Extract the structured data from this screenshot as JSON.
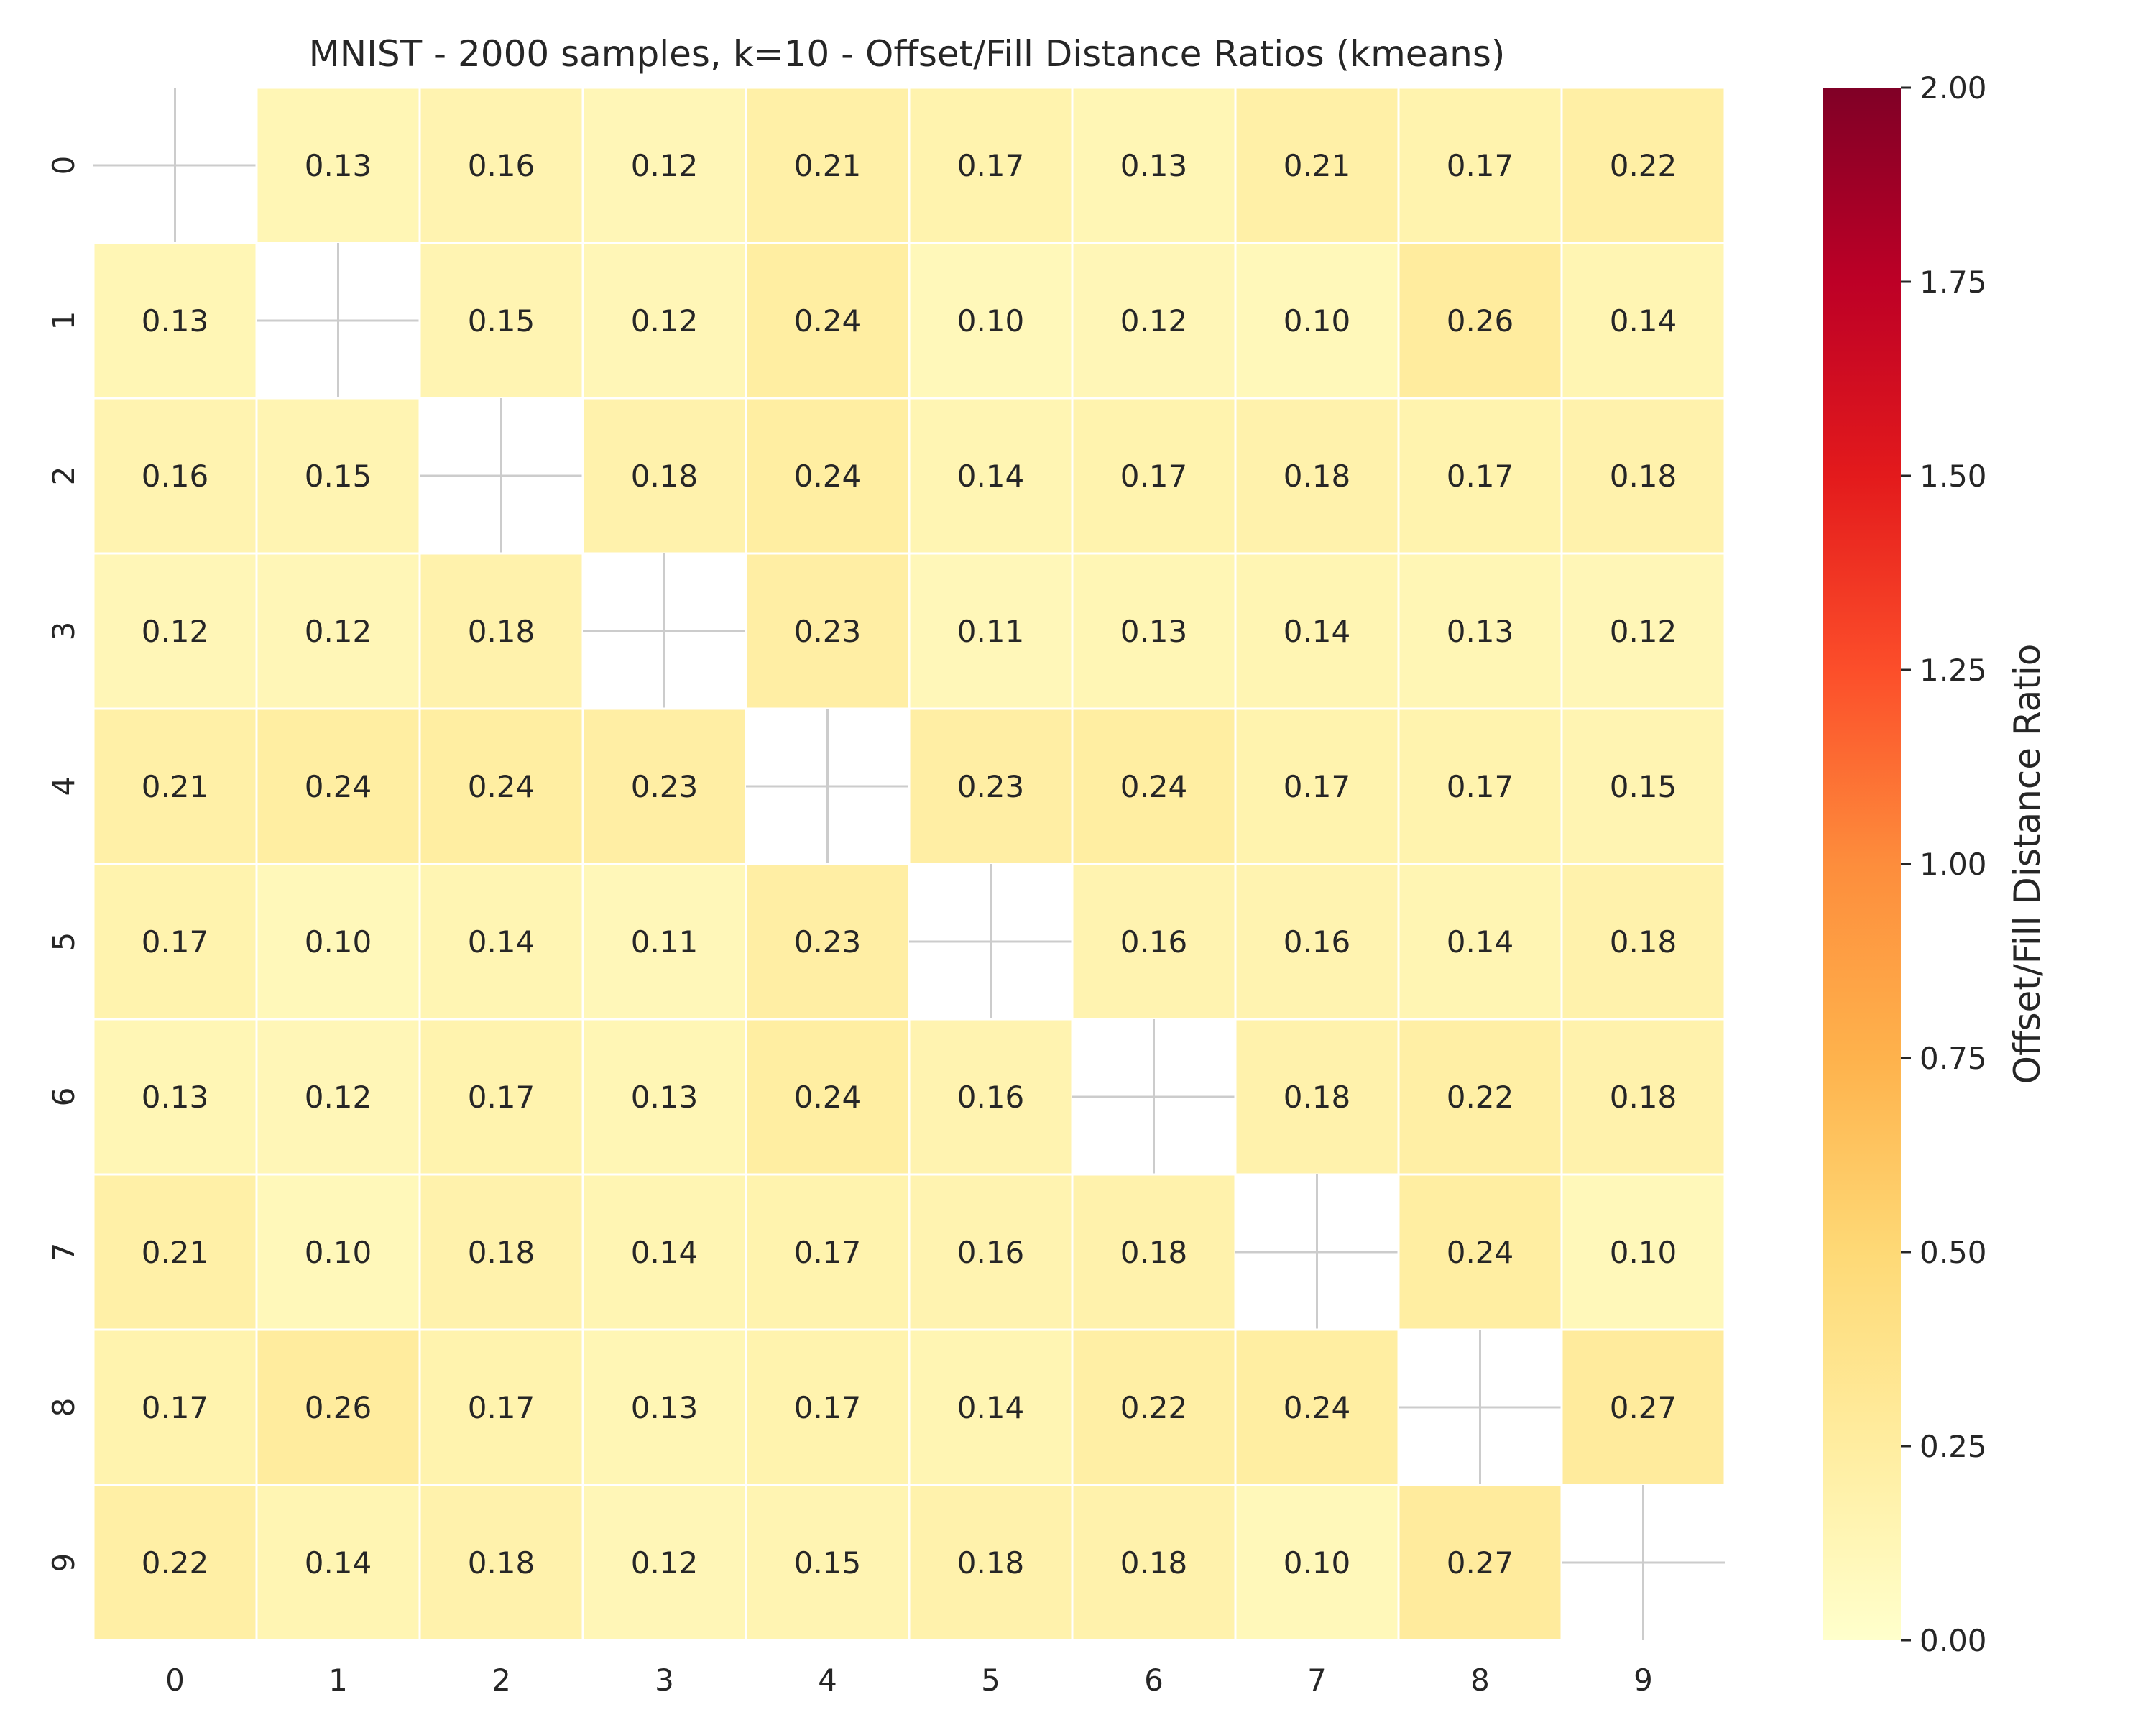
{
  "chart_data": {
    "type": "heatmap",
    "title": "MNIST - 2000 samples, k=10 - Offset/Fill Distance Ratios (kmeans)",
    "x_categories": [
      "0",
      "1",
      "2",
      "3",
      "4",
      "5",
      "6",
      "7",
      "8",
      "9"
    ],
    "y_categories": [
      "0",
      "1",
      "2",
      "3",
      "4",
      "5",
      "6",
      "7",
      "8",
      "9"
    ],
    "values": [
      [
        null,
        0.13,
        0.16,
        0.12,
        0.21,
        0.17,
        0.13,
        0.21,
        0.17,
        0.22
      ],
      [
        0.13,
        null,
        0.15,
        0.12,
        0.24,
        0.1,
        0.12,
        0.1,
        0.26,
        0.14
      ],
      [
        0.16,
        0.15,
        null,
        0.18,
        0.24,
        0.14,
        0.17,
        0.18,
        0.17,
        0.18
      ],
      [
        0.12,
        0.12,
        0.18,
        null,
        0.23,
        0.11,
        0.13,
        0.14,
        0.13,
        0.12
      ],
      [
        0.21,
        0.24,
        0.24,
        0.23,
        null,
        0.23,
        0.24,
        0.17,
        0.17,
        0.15
      ],
      [
        0.17,
        0.1,
        0.14,
        0.11,
        0.23,
        null,
        0.16,
        0.16,
        0.14,
        0.18
      ],
      [
        0.13,
        0.12,
        0.17,
        0.13,
        0.24,
        0.16,
        null,
        0.18,
        0.22,
        0.18
      ],
      [
        0.21,
        0.1,
        0.18,
        0.14,
        0.17,
        0.16,
        0.18,
        null,
        0.24,
        0.1
      ],
      [
        0.17,
        0.26,
        0.17,
        0.13,
        0.17,
        0.14,
        0.22,
        0.24,
        null,
        0.27
      ],
      [
        0.22,
        0.14,
        0.18,
        0.12,
        0.15,
        0.18,
        0.18,
        0.1,
        0.27,
        null
      ]
    ],
    "value_format_decimals": 2,
    "colorbar": {
      "label": "Offset/Fill Distance Ratio",
      "vmin": 0.0,
      "vmax": 2.0,
      "ticks": [
        0.0,
        0.25,
        0.5,
        0.75,
        1.0,
        1.25,
        1.5,
        1.75,
        2.0
      ],
      "colormap": "YlOrRd",
      "colormap_stops": [
        "#ffffcc",
        "#ffeda0",
        "#fed976",
        "#feb24c",
        "#fd8d3c",
        "#fc4e2a",
        "#e31a1c",
        "#bd0026",
        "#800026"
      ]
    },
    "missing_cell_marker": "cross",
    "grid": false
  }
}
